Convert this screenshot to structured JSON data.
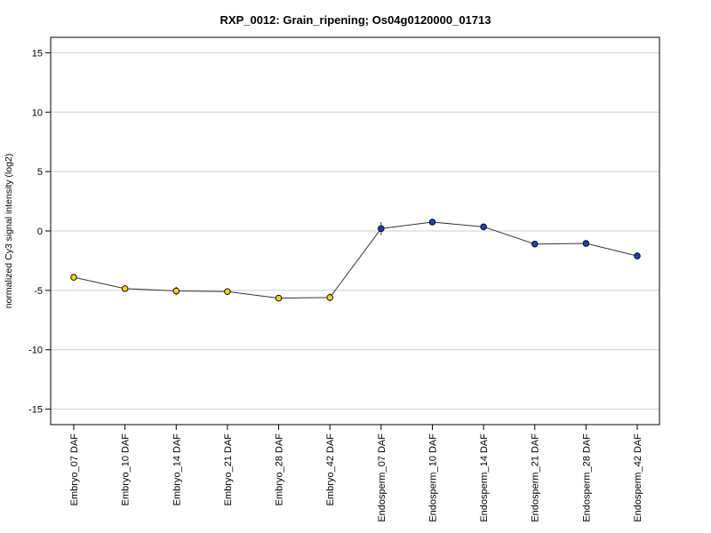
{
  "chart_data": {
    "type": "line",
    "title": "RXP_0012: Grain_ripening; Os04g0120000_01713",
    "ylabel": "normalized Cy3 signal intensity (log2)",
    "xlabel": "",
    "ylim": [
      -16.3,
      16.3
    ],
    "yticks": [
      -15,
      -10,
      -5,
      0,
      5,
      10,
      15
    ],
    "grid": true,
    "categories": [
      "Embryo_07 DAF",
      "Embryo_10 DAF",
      "Embryo_14 DAF",
      "Embryo_21 DAF",
      "Embryo_28 DAF",
      "Embryo_42 DAF",
      "Endosperm_07 DAF",
      "Endosperm_10 DAF",
      "Endosperm_14 DAF",
      "Endosperm_21 DAF",
      "Endosperm_28 DAF",
      "Endosperm_42 DAF"
    ],
    "values": [
      -3.9,
      -4.85,
      -5.05,
      -5.1,
      -5.65,
      -5.6,
      0.2,
      0.75,
      0.35,
      -1.1,
      -1.05,
      -2.1
    ],
    "error": [
      0.15,
      0.15,
      0.35,
      0.15,
      0.25,
      0.35,
      0.55,
      0.2,
      0.2,
      0.15,
      0.15,
      0.3
    ],
    "point_colors": [
      "#f2d21b",
      "#f2d21b",
      "#f2d21b",
      "#f2d21b",
      "#f2d21b",
      "#f2d21b",
      "#1f3fbf",
      "#1f3fbf",
      "#1f3fbf",
      "#1f3fbf",
      "#1f3fbf",
      "#1f3fbf"
    ],
    "line_color": "#333333",
    "grid_color": "#cccccc"
  }
}
